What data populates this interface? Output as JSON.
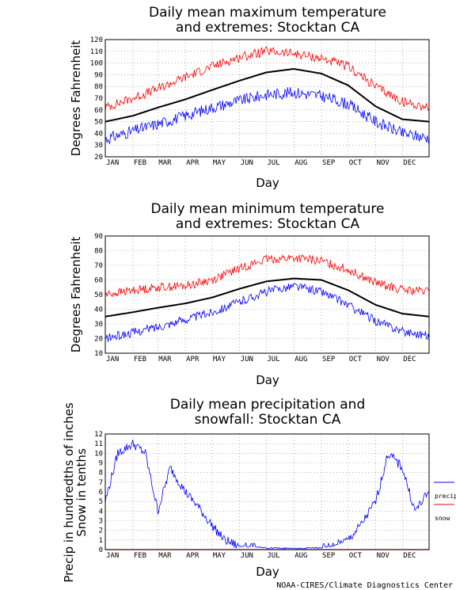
{
  "credit": "NOAA-CIRES/Climate Diagnostics Center",
  "colors": {
    "mean": "#000000",
    "max_extreme": "#ff0000",
    "min_extreme": "#0000ff",
    "grid": "#808080"
  },
  "months": [
    "JAN",
    "FEB",
    "MAR",
    "APR",
    "MAY",
    "JUN",
    "JUL",
    "AUG",
    "SEP",
    "OCT",
    "NOV",
    "DEC"
  ],
  "chart_data": [
    {
      "type": "line",
      "title_line1": "Daily mean maximum temperature",
      "title_line2": "and extremes: Stocktan CA",
      "xlabel": "Day",
      "ylabel": "Degrees Fahrenheit",
      "ylim": [
        20,
        120
      ],
      "yticks": [
        20,
        30,
        40,
        50,
        60,
        70,
        80,
        90,
        100,
        110,
        120
      ],
      "x": [
        "Jan 1",
        "Feb 1",
        "Mar 1",
        "Apr 1",
        "May 1",
        "Jun 1",
        "Jul 1",
        "Aug 1",
        "Sep 1",
        "Oct 1",
        "Nov 1",
        "Dec 1",
        "Dec 31"
      ],
      "grid": true,
      "series": [
        {
          "role": "mean",
          "values": [
            50,
            55,
            62,
            69,
            77,
            85,
            92,
            95,
            91,
            81,
            63,
            52,
            50
          ]
        },
        {
          "role": "max_extreme",
          "values": [
            62,
            70,
            78,
            88,
            97,
            105,
            110,
            108,
            104,
            97,
            80,
            67,
            62
          ]
        },
        {
          "role": "min_extreme",
          "values": [
            35,
            42,
            48,
            55,
            62,
            68,
            73,
            75,
            72,
            65,
            50,
            40,
            36
          ]
        }
      ]
    },
    {
      "type": "line",
      "title_line1": "Daily mean minimum temperature",
      "title_line2": "and extremes: Stocktan CA",
      "xlabel": "Day",
      "ylabel": "Degrees Fahrenheit",
      "ylim": [
        10,
        90
      ],
      "yticks": [
        10,
        20,
        30,
        40,
        50,
        60,
        70,
        80,
        90
      ],
      "x": [
        "Jan 1",
        "Feb 1",
        "Mar 1",
        "Apr 1",
        "May 1",
        "Jun 1",
        "Jul 1",
        "Aug 1",
        "Sep 1",
        "Oct 1",
        "Nov 1",
        "Dec 1",
        "Dec 31"
      ],
      "grid": true,
      "series": [
        {
          "role": "mean",
          "values": [
            35,
            38,
            41,
            44,
            48,
            54,
            59,
            61,
            60,
            53,
            43,
            37,
            35
          ]
        },
        {
          "role": "max_extreme",
          "values": [
            50,
            53,
            55,
            56,
            60,
            68,
            74,
            75,
            73,
            67,
            58,
            53,
            52
          ]
        },
        {
          "role": "min_extreme",
          "values": [
            20,
            24,
            28,
            33,
            38,
            45,
            52,
            56,
            52,
            43,
            32,
            25,
            22
          ]
        }
      ]
    },
    {
      "type": "line",
      "title_line1": "Daily mean precipitation and",
      "title_line2": "snowfall: Stocktan CA",
      "xlabel": "Day",
      "ylabel_line1": "Precip in hundredths of inches",
      "ylabel_line2": "Snow in tenths",
      "ylim": [
        0,
        12
      ],
      "yticks": [
        0,
        1,
        2,
        3,
        4,
        5,
        6,
        7,
        8,
        9,
        10,
        11,
        12
      ],
      "x": [
        "Jan 1",
        "Jan 15",
        "Feb 1",
        "Feb 15",
        "Mar 1",
        "Mar 15",
        "Apr 1",
        "Apr 15",
        "May 1",
        "May 15",
        "Jun 1",
        "Jun 15",
        "Jul 1",
        "Aug 1",
        "Sep 1",
        "Sep 15",
        "Oct 1",
        "Oct 15",
        "Nov 1",
        "Nov 15",
        "Dec 1",
        "Dec 15",
        "Dec 31"
      ],
      "grid": true,
      "legend_position": "right",
      "series": [
        {
          "name": "precip",
          "role": "precip",
          "values": [
            5,
            10,
            11,
            10,
            4,
            8.5,
            6,
            4.5,
            2.5,
            1,
            0.3,
            0.2,
            0.1,
            0.05,
            0.1,
            0.3,
            1,
            2.5,
            5,
            10,
            8.5,
            4,
            6
          ]
        },
        {
          "name": "snow",
          "role": "snow",
          "values": [
            0,
            0,
            0,
            0,
            0,
            0,
            0,
            0,
            0,
            0,
            0,
            0,
            0,
            0,
            0,
            0,
            0,
            0,
            0,
            0,
            0,
            0,
            0
          ]
        }
      ]
    }
  ]
}
